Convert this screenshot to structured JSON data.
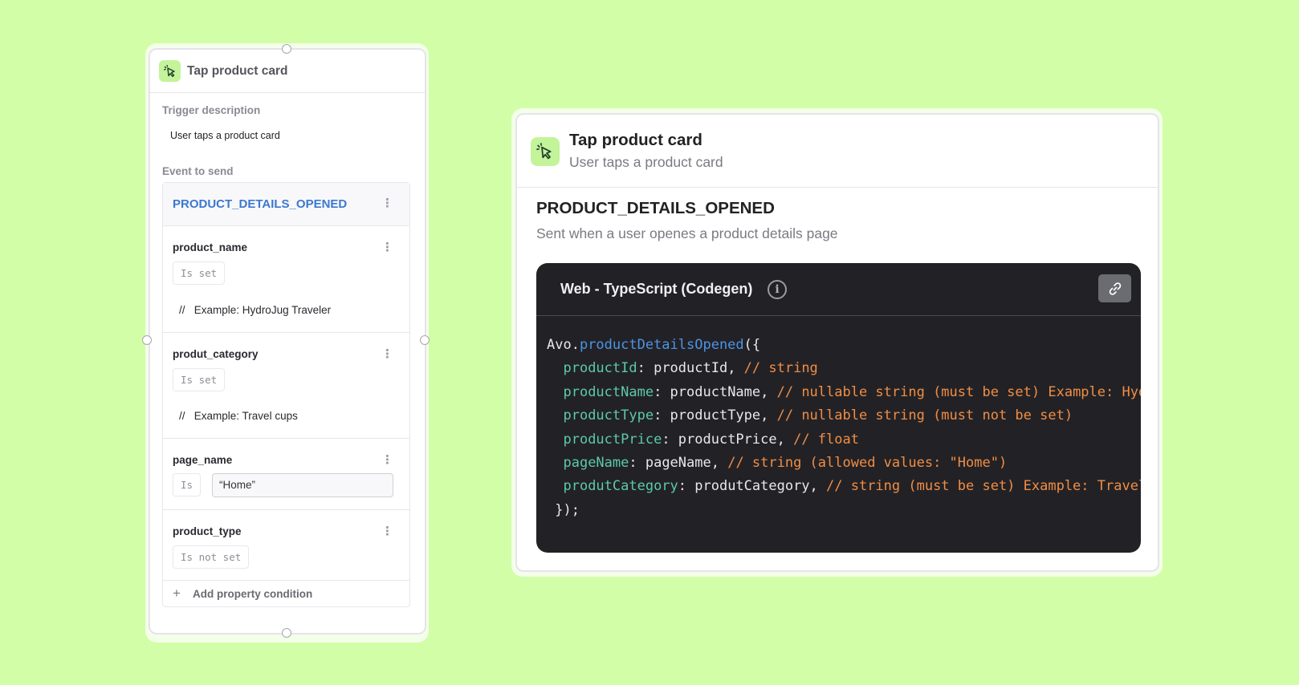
{
  "left_panel": {
    "title": "Tap product card",
    "trigger_label": "Trigger description",
    "trigger_value": "User taps a product card",
    "event_label": "Event to send",
    "event_name": "PRODUCT_DETAILS_OPENED",
    "properties": [
      {
        "name": "product_name",
        "condition": "Is set",
        "example": "Example: HydroJug Traveler"
      },
      {
        "name": "produt_category",
        "condition": "Is set",
        "example": "Example: Travel cups"
      },
      {
        "name": "page_name",
        "condition": "Is",
        "value": "“Home”"
      },
      {
        "name": "product_type",
        "condition": "Is not set"
      }
    ],
    "comment_prefix": "//",
    "add_condition": "Add property condition"
  },
  "right_panel": {
    "title": "Tap product card",
    "subtitle": "User taps a product card",
    "event_name": "PRODUCT_DETAILS_OPENED",
    "event_description": "Sent when a user openes a product details page",
    "code_title": "Web - TypeScript (Codegen)",
    "code": {
      "obj": "Avo.",
      "fn": "productDetailsOpened",
      "open": "({",
      "lines": [
        {
          "key": "productId",
          "val": ": productId, ",
          "comment": "// string"
        },
        {
          "key": "productName",
          "val": ": productName, ",
          "comment": "// nullable string (must be set) Example: HydroJug Traveler"
        },
        {
          "key": "productType",
          "val": ": productType, ",
          "comment": "// nullable string (must not be set)"
        },
        {
          "key": "productPrice",
          "val": ": productPrice, ",
          "comment": "// float"
        },
        {
          "key": "pageName",
          "val": ": pageName, ",
          "comment": "// string (allowed values: \"Home\")"
        },
        {
          "key": "produtCategory",
          "val": ": produtCategory, ",
          "comment": "// string (must be set) Example: Travel cups"
        }
      ],
      "close": "});"
    }
  },
  "colors": {
    "background": "#d2fea8",
    "icon_bg": "#c3f49a",
    "event_blue": "#3b78d0",
    "code_bg": "#222226",
    "code_key": "#5ccaa4",
    "code_fn": "#4d93e6",
    "code_comment": "#f28d44"
  }
}
